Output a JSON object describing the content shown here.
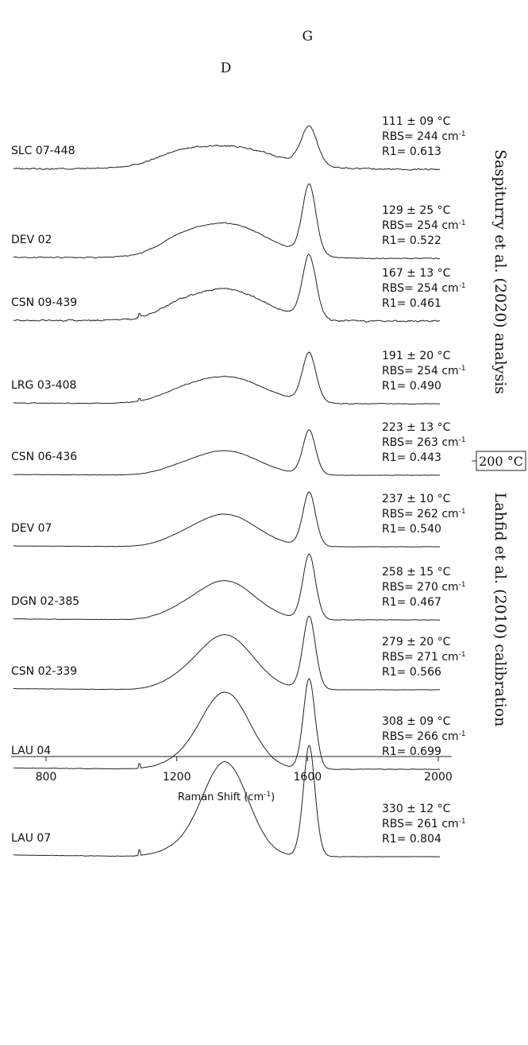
{
  "chart_data": {
    "type": "line",
    "xlabel_main": "Raman Shift (cm",
    "xlabel_sup": "-1",
    "xlabel_tail": ")",
    "xlim": [
      700,
      2040
    ],
    "xticks": [
      "800",
      "1200",
      "1600",
      "2000"
    ],
    "tick_values": [
      800,
      1200,
      1600,
      2000
    ],
    "peak_labels": [
      {
        "text": "D",
        "x": 1350
      },
      {
        "text": "G",
        "x": 1600
      }
    ],
    "threshold_label": "200 °C",
    "side_labels": {
      "top": "Saspiturry et al. (2020) analysis",
      "bottom": "Lahfid et al. (2010) calibration"
    },
    "line_color": "#222222",
    "series": [
      {
        "sample": "SLC 07-448",
        "temp": "111 ± 09 °C",
        "rbs_value": "244",
        "r1": "R1= 0.613",
        "d_width": 150,
        "g_width": 35,
        "d_height": 0.54,
        "g_height": 0.9,
        "shoulder": 0.3,
        "noise": 0.03,
        "spike": false
      },
      {
        "sample": "DEV 02",
        "temp": "129 ± 25 °C",
        "rbs_value": "254",
        "r1": "R1= 0.522",
        "d_width": 125,
        "g_width": 30,
        "d_height": 0.5,
        "g_height": 1.0,
        "shoulder": 0.25,
        "noise": 0.012,
        "spike": false
      },
      {
        "sample": "CSN 09-439",
        "temp": "167 ± 13 °C",
        "rbs_value": "254",
        "r1": "R1= 0.461",
        "d_width": 120,
        "g_width": 30,
        "d_height": 0.5,
        "g_height": 1.0,
        "shoulder": 0.25,
        "noise": 0.022,
        "spike": true
      },
      {
        "sample": "LRG 03-408",
        "temp": "191 ± 20 °C",
        "rbs_value": "254",
        "r1": "R1= 0.490",
        "d_width": 115,
        "g_width": 30,
        "d_height": 0.55,
        "g_height": 1.0,
        "shoulder": 0.22,
        "noise": 0.012,
        "spike": true
      },
      {
        "sample": "CSN 06-436",
        "temp": "223 ± 13 °C",
        "rbs_value": "263",
        "r1": "R1= 0.443",
        "d_width": 100,
        "g_width": 28,
        "d_height": 0.55,
        "g_height": 1.0,
        "shoulder": 0.2,
        "noise": 0.006,
        "spike": false
      },
      {
        "sample": "DEV 07",
        "temp": "237 ± 10 °C",
        "rbs_value": "262",
        "r1": "R1= 0.540",
        "d_width": 95,
        "g_width": 28,
        "d_height": 0.6,
        "g_height": 1.0,
        "shoulder": 0.2,
        "noise": 0.004,
        "spike": false
      },
      {
        "sample": "DGN 02-385",
        "temp": "258 ± 15 °C",
        "rbs_value": "270",
        "r1": "R1= 0.467",
        "d_width": 90,
        "g_width": 28,
        "d_height": 0.6,
        "g_height": 1.0,
        "shoulder": 0.2,
        "noise": 0.005,
        "spike": false
      },
      {
        "sample": "CSN 02-339",
        "temp": "279 ± 20 °C",
        "rbs_value": "271",
        "r1": "R1= 0.566",
        "d_width": 85,
        "g_width": 28,
        "d_height": 0.75,
        "g_height": 1.0,
        "shoulder": 0.2,
        "noise": 0.003,
        "spike": false
      },
      {
        "sample": "LAU 04",
        "temp": "308 ± 09 °C",
        "rbs_value": "266",
        "r1": "R1= 0.699",
        "d_width": 75,
        "g_width": 26,
        "d_height": 0.85,
        "g_height": 1.0,
        "shoulder": 0.15,
        "noise": 0.004,
        "spike": true
      },
      {
        "sample": "LAU 07",
        "temp": "330 ± 12 °C",
        "rbs_value": "261",
        "r1": "R1= 0.804",
        "d_width": 70,
        "g_width": 26,
        "d_height": 0.85,
        "g_height": 1.0,
        "shoulder": 0.15,
        "noise": 0.003,
        "spike": true
      }
    ]
  }
}
